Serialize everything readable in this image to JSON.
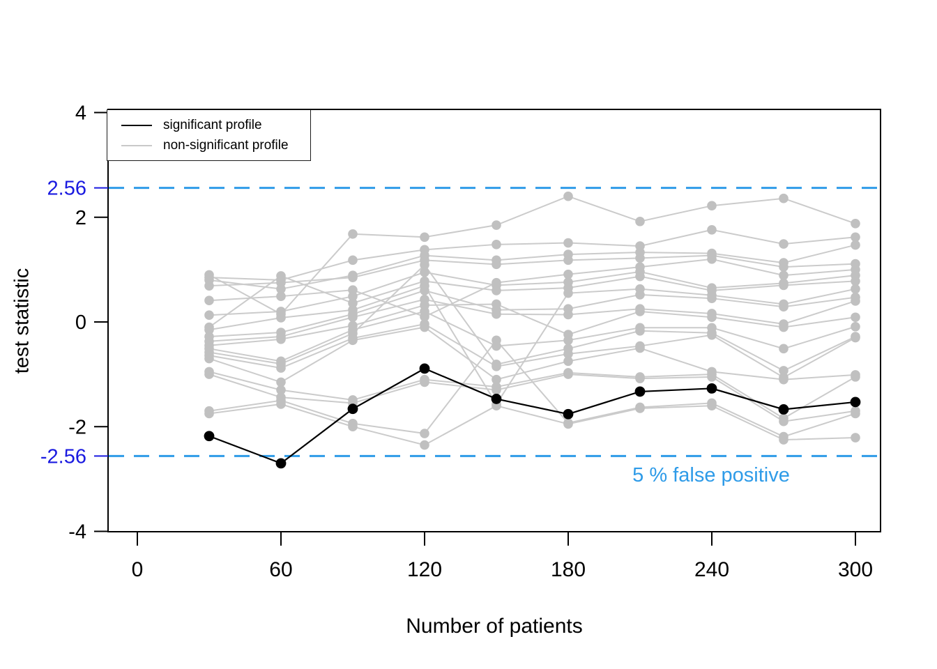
{
  "figure": {
    "background": "#ffffff",
    "annotation": {
      "text": "5 % false positive",
      "color": "#2e9be8"
    },
    "legend": {
      "items": [
        {
          "label": "significant profile",
          "color": "#000000"
        },
        {
          "label": "non-significant profile",
          "color": "#c9c9c9"
        }
      ]
    }
  },
  "chart_data": {
    "type": "line",
    "title": "",
    "xlabel": "Number of patients",
    "ylabel": "test statistic",
    "x": [
      30,
      60,
      90,
      120,
      150,
      180,
      210,
      240,
      270,
      300
    ],
    "xlim": [
      -12,
      310
    ],
    "ylim": [
      -4.06,
      4.06
    ],
    "grid": false,
    "legend_position": "top-left",
    "xticks": [
      {
        "value": 0,
        "label": "0"
      },
      {
        "value": 60,
        "label": "60"
      },
      {
        "value": 120,
        "label": "120"
      },
      {
        "value": 180,
        "label": "180"
      },
      {
        "value": 240,
        "label": "240"
      },
      {
        "value": 300,
        "label": "300"
      }
    ],
    "yticks": [
      {
        "value": 4,
        "label": "4",
        "color": "#000000"
      },
      {
        "value": 2.56,
        "label": "2.56",
        "color": "#1a1ae0"
      },
      {
        "value": 2,
        "label": "2",
        "color": "#000000"
      },
      {
        "value": 0,
        "label": "0",
        "color": "#000000"
      },
      {
        "value": -2,
        "label": "-2",
        "color": "#000000"
      },
      {
        "value": -2.56,
        "label": "-2.56",
        "color": "#1a1ae0"
      },
      {
        "value": -4,
        "label": "-4",
        "color": "#000000"
      }
    ],
    "thresholds": {
      "values": [
        2.56,
        -2.56
      ],
      "style": "dashed",
      "color": "#2e9be8",
      "label": "5 % false positive"
    },
    "significant": {
      "name": "significant profile",
      "color": "#000000",
      "values": [
        -2.18,
        -2.7,
        -1.66,
        -0.89,
        -1.47,
        -1.76,
        -1.33,
        -1.27,
        -1.67,
        -1.53
      ]
    },
    "non_significant": {
      "name": "non-significant profile",
      "dot_color": "#c0c0c0",
      "line_color": "#cbcbcb",
      "series": [
        [
          0.9,
          0.15,
          1.68,
          1.62,
          1.85,
          2.4,
          1.92,
          2.22,
          2.36,
          1.88
        ],
        [
          0.85,
          0.8,
          1.18,
          1.38,
          1.48,
          1.51,
          1.45,
          1.76,
          1.49,
          1.62
        ],
        [
          0.8,
          0.63,
          0.89,
          1.27,
          1.18,
          1.29,
          1.33,
          1.31,
          1.13,
          1.47
        ],
        [
          0.69,
          0.75,
          0.85,
          1.18,
          1.1,
          1.18,
          1.22,
          1.27,
          1.05,
          1.11
        ],
        [
          0.41,
          0.49,
          0.61,
          0.1,
          0.75,
          0.91,
          1.05,
          1.2,
          0.89,
          1.0
        ],
        [
          0.13,
          0.2,
          0.49,
          0.95,
          0.7,
          0.76,
          0.96,
          0.65,
          0.74,
          0.89
        ],
        [
          -0.1,
          0.88,
          0.36,
          0.78,
          0.6,
          0.65,
          0.87,
          0.6,
          0.7,
          0.78
        ],
        [
          -0.15,
          0.08,
          0.23,
          0.69,
          -1.57,
          0.55,
          0.63,
          0.51,
          0.34,
          0.63
        ],
        [
          -0.28,
          -0.2,
          0.15,
          0.6,
          0.23,
          0.25,
          0.52,
          0.45,
          0.29,
          0.47
        ],
        [
          -0.37,
          -0.28,
          0.09,
          0.43,
          0.15,
          0.14,
          0.25,
          0.16,
          -0.04,
          0.4
        ],
        [
          -0.45,
          -0.33,
          -0.07,
          0.32,
          0.34,
          -0.24,
          0.2,
          0.09,
          -0.1,
          0.09
        ],
        [
          -0.51,
          -0.75,
          -0.15,
          0.2,
          -0.46,
          -0.35,
          -0.11,
          -0.11,
          -0.51,
          -0.09
        ],
        [
          -0.58,
          -0.8,
          -0.22,
          1.09,
          -0.81,
          -0.51,
          -0.17,
          -0.21,
          -0.93,
          -0.28
        ],
        [
          -0.64,
          -0.88,
          -0.31,
          -0.04,
          -0.85,
          -0.61,
          -0.46,
          -0.25,
          -1.06,
          -0.3
        ],
        [
          -0.7,
          -1.15,
          -0.35,
          -0.1,
          -1.1,
          -0.75,
          -0.5,
          -0.95,
          -1.1,
          -1.01
        ],
        [
          -0.95,
          -1.3,
          -1.49,
          -1.1,
          -1.24,
          -0.97,
          -1.05,
          -1.0,
          -1.84,
          -1.05
        ],
        [
          -1.0,
          -1.44,
          -1.55,
          -1.15,
          -1.3,
          -1.0,
          -1.08,
          -1.05,
          -1.9,
          -1.7
        ],
        [
          -1.7,
          -1.5,
          -1.94,
          -2.13,
          -0.35,
          -1.93,
          -1.63,
          -1.55,
          -2.19,
          -1.75
        ],
        [
          -1.75,
          -1.57,
          -2.0,
          -2.35,
          -1.6,
          -1.95,
          -1.65,
          -1.6,
          -2.25,
          -2.21
        ]
      ]
    }
  }
}
